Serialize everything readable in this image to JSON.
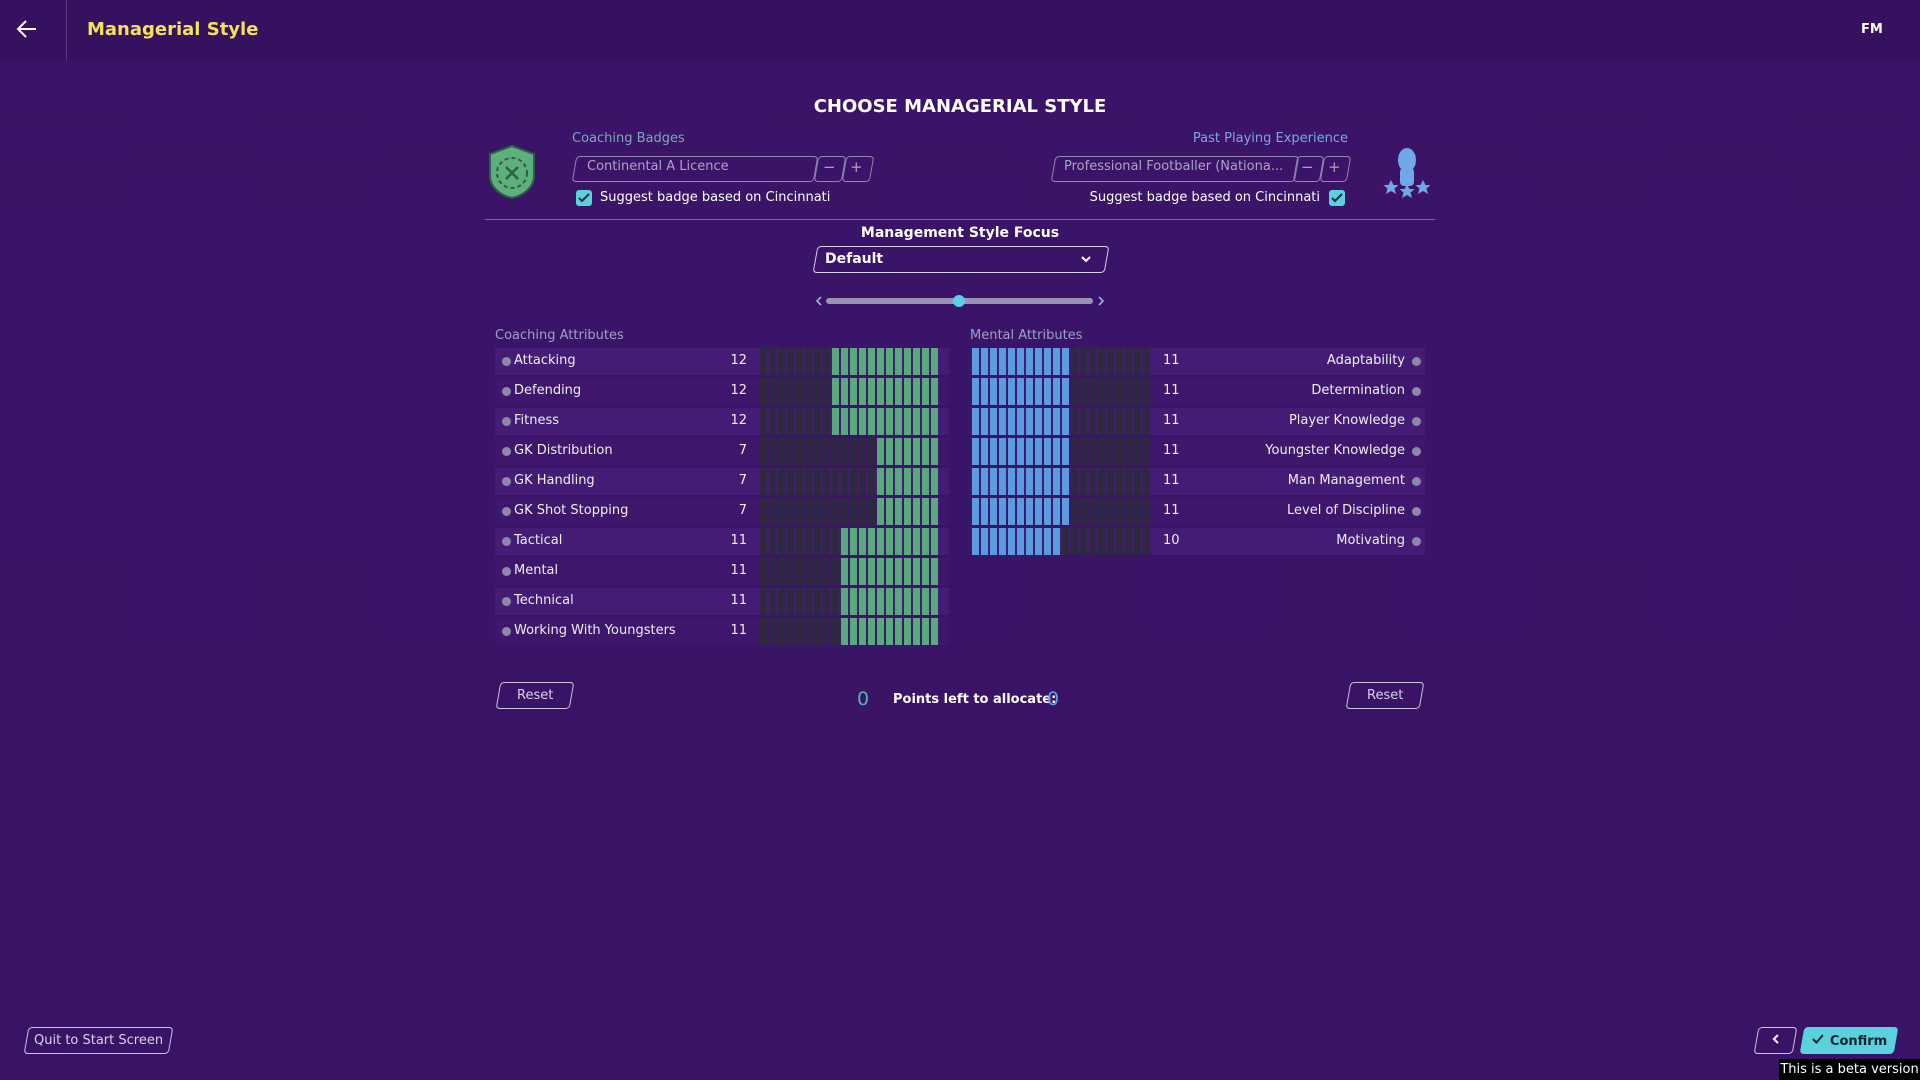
{
  "header": {
    "title": "Managerial Style",
    "menu": "FM"
  },
  "heading": "CHOOSE MANAGERIAL STYLE",
  "coaching_badges": {
    "label": "Coaching Badges",
    "selected": "Continental A Licence",
    "suggest": "Suggest badge based on Cincinnati"
  },
  "playing_experience": {
    "label": "Past Playing Experience",
    "selected": "Professional Footballer (Nationa...",
    "suggest": "Suggest badge based on Cincinnati"
  },
  "focus": {
    "label": "Management Style Focus",
    "selected": "Default"
  },
  "coaching_attributes": {
    "title": "Coaching Attributes",
    "rows": [
      {
        "name": "Attacking",
        "value": 12
      },
      {
        "name": "Defending",
        "value": 12
      },
      {
        "name": "Fitness",
        "value": 12
      },
      {
        "name": "GK Distribution",
        "value": 7
      },
      {
        "name": "GK Handling",
        "value": 7
      },
      {
        "name": "GK Shot Stopping",
        "value": 7
      },
      {
        "name": "Tactical",
        "value": 11
      },
      {
        "name": "Mental",
        "value": 11
      },
      {
        "name": "Technical",
        "value": 11
      },
      {
        "name": "Working With Youngsters",
        "value": 11
      }
    ]
  },
  "mental_attributes": {
    "title": "Mental Attributes",
    "rows": [
      {
        "name": "Adaptability",
        "value": 11
      },
      {
        "name": "Determination",
        "value": 11
      },
      {
        "name": "Player Knowledge",
        "value": 11
      },
      {
        "name": "Youngster Knowledge",
        "value": 11
      },
      {
        "name": "Man Management",
        "value": 11
      },
      {
        "name": "Level of Discipline",
        "value": 11
      },
      {
        "name": "Motivating",
        "value": 10
      }
    ]
  },
  "points": {
    "label": "Points left to allocate:",
    "left": 0,
    "right": 0
  },
  "buttons": {
    "reset_left": "Reset",
    "reset_right": "Reset",
    "quit": "Quit to Start Screen",
    "confirm": "Confirm"
  },
  "beta": "This is a beta version"
}
